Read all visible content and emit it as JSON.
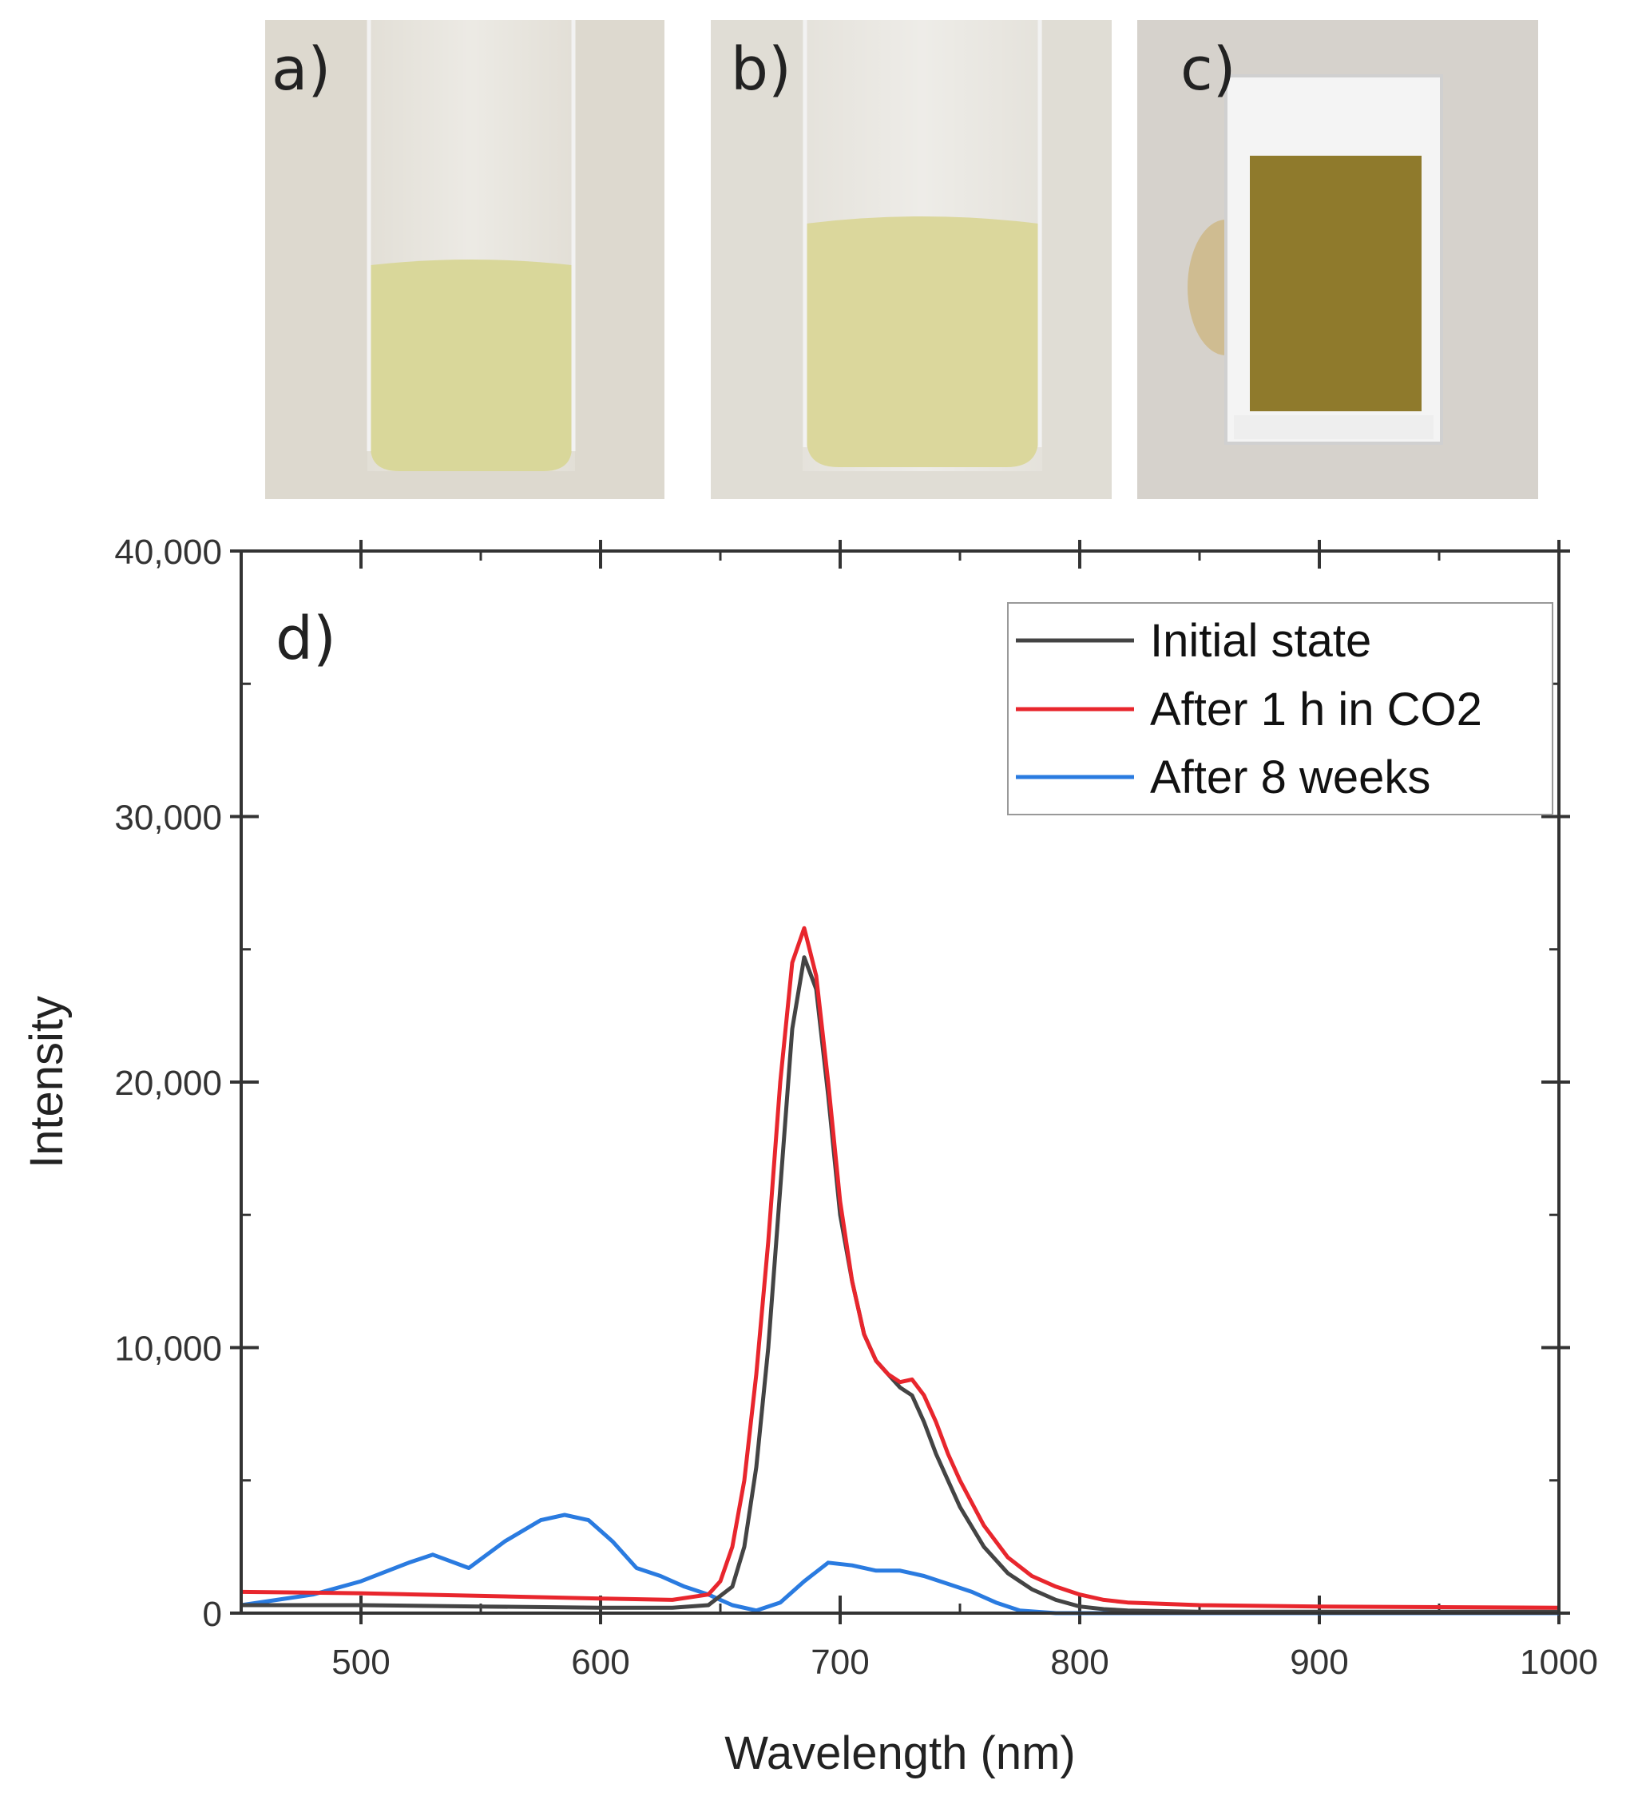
{
  "panels": [
    {
      "label": "a)",
      "liquid_color": "#d9d79a",
      "background_color": "#ddd9cf",
      "vessel": "tube"
    },
    {
      "label": "b)",
      "liquid_color": "#dbd79c",
      "background_color": "#e0ddd5",
      "vessel": "tube"
    },
    {
      "label": "c)",
      "liquid_color": "#8f7a2c",
      "background_color": "#d6d2cc",
      "vessel": "cuvette"
    }
  ],
  "chart_data": {
    "type": "line",
    "panel_label": "d)",
    "xlabel": "Wavelength (nm)",
    "ylabel": "Intensity",
    "xlim": [
      450,
      1000
    ],
    "ylim": [
      0,
      40000
    ],
    "x_ticks": [
      500,
      600,
      700,
      800,
      900,
      1000
    ],
    "y_ticks": [
      0,
      10000,
      20000,
      30000,
      40000
    ],
    "y_tick_labels": [
      "0",
      "10,000",
      "20,000",
      "30,000",
      "40,000"
    ],
    "x_minor_step": 50,
    "y_minor_step": 5000,
    "grid": false,
    "legend_position": "top-right",
    "series": [
      {
        "name": "Initial state",
        "color": "#444444",
        "x": [
          450,
          500,
          550,
          600,
          630,
          645,
          655,
          660,
          665,
          670,
          675,
          680,
          685,
          690,
          695,
          700,
          705,
          710,
          715,
          720,
          725,
          730,
          735,
          740,
          745,
          750,
          760,
          770,
          780,
          790,
          800,
          810,
          820,
          850,
          900,
          1000
        ],
        "y": [
          300,
          300,
          250,
          200,
          200,
          300,
          1000,
          2500,
          5500,
          10000,
          16000,
          22000,
          24700,
          23500,
          19500,
          15000,
          12500,
          10500,
          9500,
          9000,
          8500,
          8200,
          7200,
          6000,
          5000,
          4000,
          2500,
          1500,
          900,
          500,
          250,
          150,
          100,
          50,
          50,
          50
        ]
      },
      {
        "name": "After 1 h in CO2",
        "color": "#e8262d",
        "x": [
          450,
          500,
          550,
          600,
          630,
          645,
          650,
          655,
          660,
          665,
          670,
          675,
          680,
          685,
          690,
          695,
          700,
          705,
          710,
          715,
          720,
          725,
          730,
          735,
          740,
          745,
          750,
          760,
          770,
          780,
          790,
          800,
          810,
          820,
          850,
          900,
          1000
        ],
        "y": [
          800,
          750,
          650,
          550,
          500,
          700,
          1200,
          2500,
          5000,
          9000,
          14000,
          20000,
          24500,
          25800,
          24000,
          20000,
          15500,
          12500,
          10500,
          9500,
          9000,
          8700,
          8800,
          8200,
          7200,
          6000,
          5000,
          3300,
          2100,
          1400,
          1000,
          700,
          500,
          400,
          300,
          250,
          200
        ]
      },
      {
        "name": "After 8 weeks",
        "color": "#2a7be0",
        "x": [
          450,
          480,
          500,
          520,
          530,
          545,
          560,
          575,
          585,
          595,
          605,
          615,
          625,
          635,
          645,
          655,
          665,
          675,
          685,
          695,
          705,
          715,
          725,
          735,
          745,
          755,
          765,
          775,
          790,
          850,
          1000
        ],
        "y": [
          300,
          700,
          1200,
          1900,
          2200,
          1700,
          2700,
          3500,
          3700,
          3500,
          2700,
          1700,
          1400,
          1000,
          700,
          300,
          100,
          400,
          1200,
          1900,
          1800,
          1600,
          1600,
          1400,
          1100,
          800,
          400,
          100,
          0,
          0,
          0
        ]
      }
    ]
  }
}
